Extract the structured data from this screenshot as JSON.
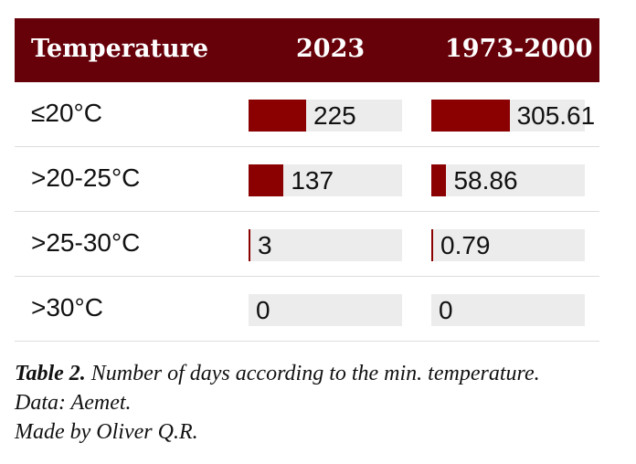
{
  "chart_data": {
    "type": "table",
    "columns": [
      "Temperature",
      "2023",
      "1973-2000"
    ],
    "rows": [
      {
        "label": "≤20°C",
        "values": [
          225,
          305.61
        ],
        "display": [
          "225",
          "305.61"
        ]
      },
      {
        "label": ">20-25°C",
        "values": [
          137,
          58.86
        ],
        "display": [
          "137",
          "58.86"
        ]
      },
      {
        "label": ">25-30°C",
        "values": [
          3,
          0.79
        ],
        "display": [
          "3",
          "0.79"
        ]
      },
      {
        "label": ">30°C",
        "values": [
          0,
          0
        ],
        "display": [
          "0",
          "0"
        ]
      }
    ],
    "bar_max": [
      600,
      600
    ],
    "colors": {
      "header_bg": "#660009",
      "bar": "#8b0000",
      "bar_bg": "#ececec"
    }
  },
  "caption": {
    "label": "Table 2.",
    "text": " Number of days according to the min. temperature.",
    "source": "Data: Aemet.",
    "credit": "Made by Oliver Q.R."
  }
}
